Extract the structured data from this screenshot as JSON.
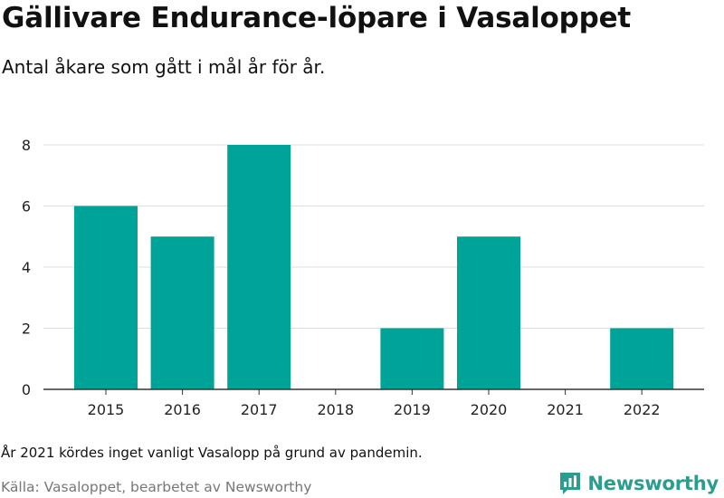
{
  "header": {
    "title": "Gällivare Endurance-löpare i Vasaloppet",
    "subtitle": "Antal åkare som gått i mål år för år."
  },
  "footer": {
    "note": "År 2021 kördes inget vanligt Vasalopp på grund av pandemin.",
    "source": "Källa: Vasaloppet, bearbetet av Newsworthy",
    "brand": "Newsworthy",
    "brand_icon": "newsworthy-logo-icon"
  },
  "colors": {
    "bar": "#00a398",
    "grid": "#dddddd",
    "axis": "#333333",
    "brand": "#2a9d8f"
  },
  "chart_data": {
    "type": "bar",
    "categories": [
      "2015",
      "2016",
      "2017",
      "2018",
      "2019",
      "2020",
      "2021",
      "2022"
    ],
    "values": [
      6,
      5,
      8,
      0,
      2,
      5,
      0,
      2
    ],
    "ylim": [
      0,
      8
    ],
    "yticks": [
      0,
      2,
      4,
      6,
      8
    ],
    "grid": true,
    "xlabel": "",
    "ylabel": ""
  }
}
